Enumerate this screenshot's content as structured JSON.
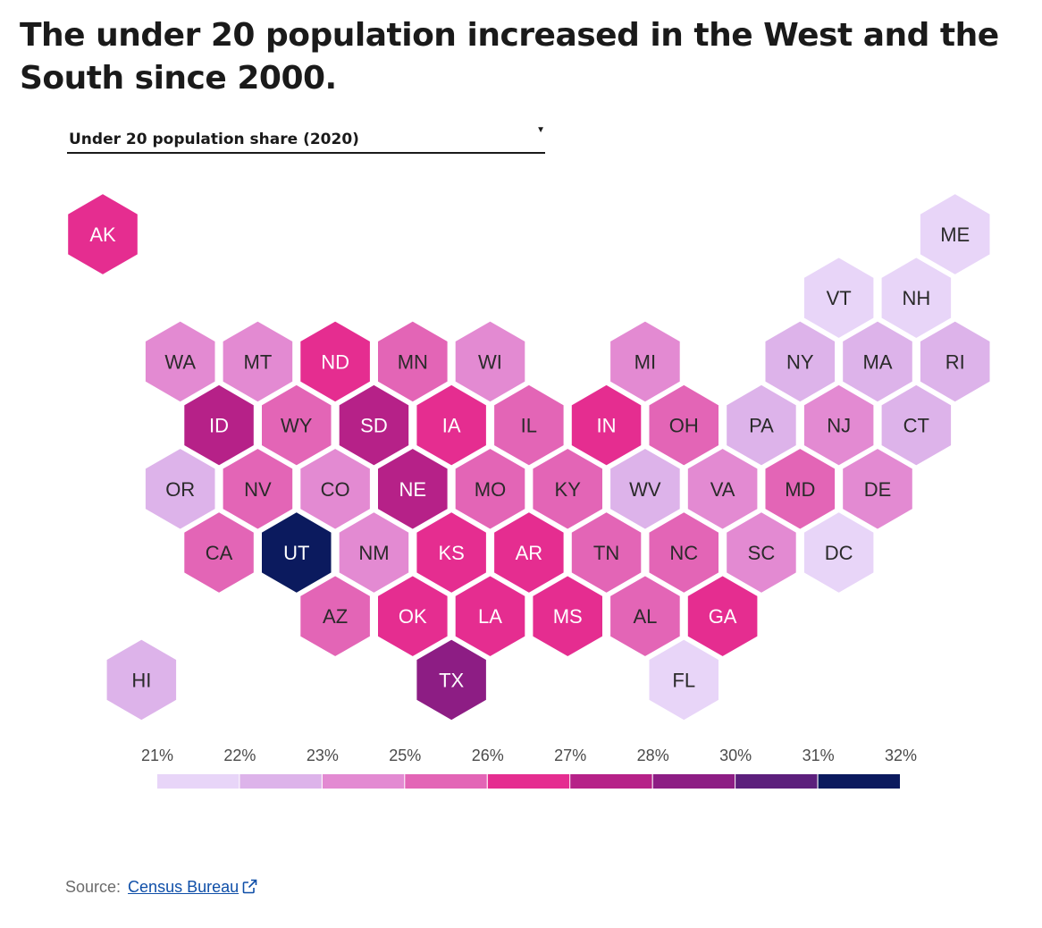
{
  "title": "The under 20 population increased in the West and the South since 2000.",
  "metric_selector": {
    "selected": "Under 20 population share (2020)"
  },
  "source": {
    "label": "Source:",
    "link_text": "Census Bureau"
  },
  "chart_data": {
    "type": "hex-tile-map",
    "metric": "Under 20 population share (2020)",
    "legend": {
      "ticks": [
        "21%",
        "22%",
        "23%",
        "25%",
        "26%",
        "27%",
        "28%",
        "30%",
        "31%",
        "32%"
      ],
      "colors": [
        "#e8d5f8",
        "#ddb3ea",
        "#e38ad2",
        "#e365b6",
        "#e52d90",
        "#b62188",
        "#8d1d84",
        "#5c1f7c",
        "#0b1a5e"
      ]
    },
    "states": [
      {
        "abbr": "AK",
        "row": 0,
        "col": 0,
        "bin": 4
      },
      {
        "abbr": "ME",
        "row": 0,
        "col": 11,
        "bin": 0
      },
      {
        "abbr": "VT",
        "row": 1,
        "col": 9.5,
        "bin": 0
      },
      {
        "abbr": "NH",
        "row": 1,
        "col": 10.5,
        "bin": 0
      },
      {
        "abbr": "WA",
        "row": 2,
        "col": 1,
        "bin": 2
      },
      {
        "abbr": "MT",
        "row": 2,
        "col": 2,
        "bin": 2
      },
      {
        "abbr": "ND",
        "row": 2,
        "col": 3,
        "bin": 4
      },
      {
        "abbr": "MN",
        "row": 2,
        "col": 4,
        "bin": 3
      },
      {
        "abbr": "WI",
        "row": 2,
        "col": 5,
        "bin": 2
      },
      {
        "abbr": "MI",
        "row": 2,
        "col": 7,
        "bin": 2
      },
      {
        "abbr": "NY",
        "row": 2,
        "col": 9,
        "bin": 1
      },
      {
        "abbr": "MA",
        "row": 2,
        "col": 10,
        "bin": 1
      },
      {
        "abbr": "RI",
        "row": 2,
        "col": 11,
        "bin": 1
      },
      {
        "abbr": "ID",
        "row": 3,
        "col": 1.5,
        "bin": 5
      },
      {
        "abbr": "WY",
        "row": 3,
        "col": 2.5,
        "bin": 3
      },
      {
        "abbr": "SD",
        "row": 3,
        "col": 3.5,
        "bin": 5
      },
      {
        "abbr": "IA",
        "row": 3,
        "col": 4.5,
        "bin": 4
      },
      {
        "abbr": "IL",
        "row": 3,
        "col": 5.5,
        "bin": 3
      },
      {
        "abbr": "IN",
        "row": 3,
        "col": 6.5,
        "bin": 4
      },
      {
        "abbr": "OH",
        "row": 3,
        "col": 7.5,
        "bin": 3
      },
      {
        "abbr": "PA",
        "row": 3,
        "col": 8.5,
        "bin": 1
      },
      {
        "abbr": "NJ",
        "row": 3,
        "col": 9.5,
        "bin": 2
      },
      {
        "abbr": "CT",
        "row": 3,
        "col": 10.5,
        "bin": 1
      },
      {
        "abbr": "OR",
        "row": 4,
        "col": 1,
        "bin": 1
      },
      {
        "abbr": "NV",
        "row": 4,
        "col": 2,
        "bin": 3
      },
      {
        "abbr": "CO",
        "row": 4,
        "col": 3,
        "bin": 2
      },
      {
        "abbr": "NE",
        "row": 4,
        "col": 4,
        "bin": 5
      },
      {
        "abbr": "MO",
        "row": 4,
        "col": 5,
        "bin": 3
      },
      {
        "abbr": "KY",
        "row": 4,
        "col": 6,
        "bin": 3
      },
      {
        "abbr": "WV",
        "row": 4,
        "col": 7,
        "bin": 1
      },
      {
        "abbr": "VA",
        "row": 4,
        "col": 8,
        "bin": 2
      },
      {
        "abbr": "MD",
        "row": 4,
        "col": 9,
        "bin": 3
      },
      {
        "abbr": "DE",
        "row": 4,
        "col": 10,
        "bin": 2
      },
      {
        "abbr": "CA",
        "row": 5,
        "col": 1.5,
        "bin": 3
      },
      {
        "abbr": "UT",
        "row": 5,
        "col": 2.5,
        "bin": 8
      },
      {
        "abbr": "NM",
        "row": 5,
        "col": 3.5,
        "bin": 2
      },
      {
        "abbr": "KS",
        "row": 5,
        "col": 4.5,
        "bin": 4
      },
      {
        "abbr": "AR",
        "row": 5,
        "col": 5.5,
        "bin": 4
      },
      {
        "abbr": "TN",
        "row": 5,
        "col": 6.5,
        "bin": 3
      },
      {
        "abbr": "NC",
        "row": 5,
        "col": 7.5,
        "bin": 3
      },
      {
        "abbr": "SC",
        "row": 5,
        "col": 8.5,
        "bin": 2
      },
      {
        "abbr": "DC",
        "row": 5,
        "col": 9.5,
        "bin": 0
      },
      {
        "abbr": "AZ",
        "row": 6,
        "col": 3,
        "bin": 3
      },
      {
        "abbr": "OK",
        "row": 6,
        "col": 4,
        "bin": 4
      },
      {
        "abbr": "LA",
        "row": 6,
        "col": 5,
        "bin": 4
      },
      {
        "abbr": "MS",
        "row": 6,
        "col": 6,
        "bin": 4
      },
      {
        "abbr": "AL",
        "row": 6,
        "col": 7,
        "bin": 3
      },
      {
        "abbr": "GA",
        "row": 6,
        "col": 8,
        "bin": 4
      },
      {
        "abbr": "HI",
        "row": 7,
        "col": 0.5,
        "bin": 1
      },
      {
        "abbr": "TX",
        "row": 7,
        "col": 4.5,
        "bin": 6
      },
      {
        "abbr": "FL",
        "row": 7,
        "col": 7.5,
        "bin": 0
      }
    ]
  }
}
